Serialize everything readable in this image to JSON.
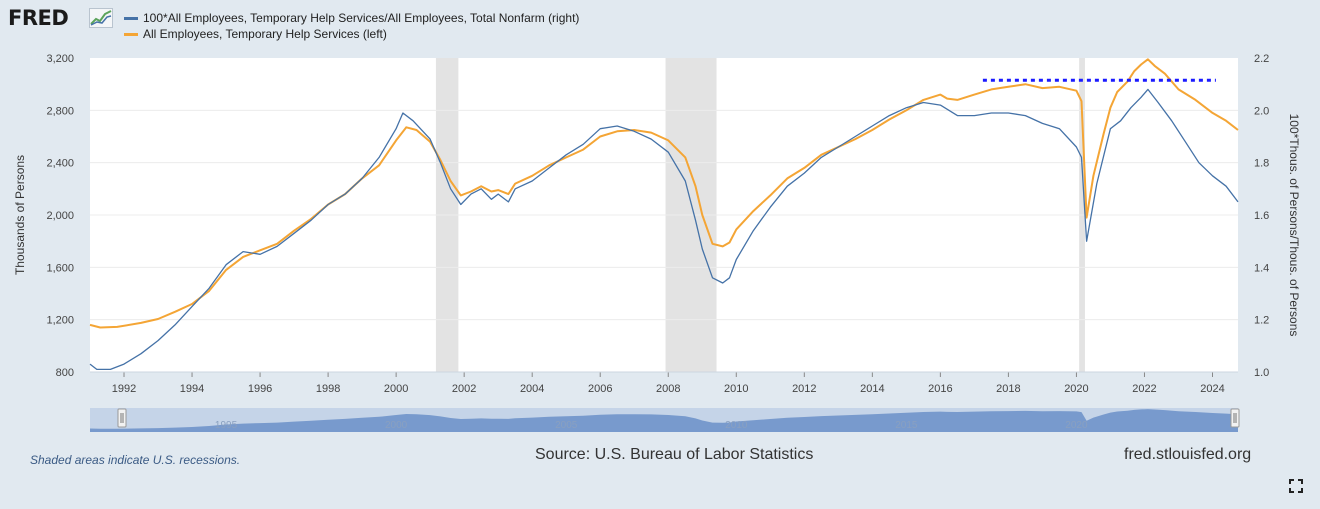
{
  "header": {
    "logo_text": "FRED",
    "logo_icon": "line-chart-icon"
  },
  "legend": {
    "items": [
      {
        "label": "100*All Employees, Temporary Help Services/All Employees, Total Nonfarm (right)",
        "color": "#4572a7"
      },
      {
        "label": "All Employees, Temporary Help Services (left)",
        "color": "#f4a535"
      }
    ]
  },
  "footer": {
    "recession_note": "Shaded areas indicate U.S. recessions.",
    "source": "Source: U.S. Bureau of Labor Statistics",
    "url": "fred.stlouisfed.org",
    "expand_icon": "fullscreen-icon"
  },
  "chart_data": {
    "type": "line",
    "xlim": [
      1991.0,
      2024.75
    ],
    "x_ticks": [
      "1992",
      "1994",
      "1996",
      "1998",
      "2000",
      "2002",
      "2004",
      "2006",
      "2008",
      "2010",
      "2012",
      "2014",
      "2016",
      "2018",
      "2020",
      "2022",
      "2024"
    ],
    "y_left": {
      "label": "Thousands of Persons",
      "ylim": [
        800,
        3200
      ],
      "ticks": [
        "800",
        "1,200",
        "1,600",
        "2,000",
        "2,400",
        "2,800",
        "3,200"
      ]
    },
    "y_right": {
      "label": "100*Thous. of Persons/Thous. of Persons",
      "ylim": [
        1.0,
        2.2
      ],
      "ticks": [
        "1.0",
        "1.2",
        "1.4",
        "1.6",
        "1.8",
        "2.0",
        "2.2"
      ]
    },
    "recessions": [
      [
        2001.17,
        2001.83
      ],
      [
        2007.92,
        2009.42
      ],
      [
        2020.08,
        2020.25
      ]
    ],
    "reference_line": {
      "x": [
        2017.25,
        2024.1
      ],
      "y_left": 3030,
      "color": "#1a1aff",
      "style": "dotted"
    },
    "navigator_ticks": [
      "1995",
      "2000",
      "2005",
      "2010",
      "2015",
      "2020"
    ],
    "series": [
      {
        "name": "All Employees, Temporary Help Services (left)",
        "axis": "left",
        "color": "#f4a535",
        "points": [
          [
            1991.0,
            1160
          ],
          [
            1991.3,
            1140
          ],
          [
            1991.8,
            1145
          ],
          [
            1992.5,
            1175
          ],
          [
            1993.0,
            1205
          ],
          [
            1993.5,
            1260
          ],
          [
            1994.0,
            1320
          ],
          [
            1994.5,
            1420
          ],
          [
            1995.0,
            1580
          ],
          [
            1995.5,
            1680
          ],
          [
            1996.0,
            1730
          ],
          [
            1996.5,
            1780
          ],
          [
            1997.0,
            1880
          ],
          [
            1997.5,
            1970
          ],
          [
            1998.0,
            2080
          ],
          [
            1998.5,
            2160
          ],
          [
            1999.0,
            2280
          ],
          [
            1999.5,
            2380
          ],
          [
            2000.0,
            2570
          ],
          [
            2000.3,
            2670
          ],
          [
            2000.6,
            2650
          ],
          [
            2001.0,
            2560
          ],
          [
            2001.3,
            2420
          ],
          [
            2001.6,
            2260
          ],
          [
            2001.9,
            2150
          ],
          [
            2002.2,
            2180
          ],
          [
            2002.5,
            2220
          ],
          [
            2002.8,
            2180
          ],
          [
            2003.0,
            2190
          ],
          [
            2003.3,
            2160
          ],
          [
            2003.5,
            2240
          ],
          [
            2004.0,
            2300
          ],
          [
            2004.5,
            2380
          ],
          [
            2005.0,
            2440
          ],
          [
            2005.5,
            2500
          ],
          [
            2006.0,
            2600
          ],
          [
            2006.5,
            2640
          ],
          [
            2007.0,
            2650
          ],
          [
            2007.5,
            2630
          ],
          [
            2008.0,
            2570
          ],
          [
            2008.5,
            2440
          ],
          [
            2008.8,
            2220
          ],
          [
            2009.0,
            2000
          ],
          [
            2009.3,
            1780
          ],
          [
            2009.6,
            1760
          ],
          [
            2009.8,
            1790
          ],
          [
            2010.0,
            1890
          ],
          [
            2010.5,
            2030
          ],
          [
            2011.0,
            2150
          ],
          [
            2011.5,
            2280
          ],
          [
            2012.0,
            2360
          ],
          [
            2012.5,
            2460
          ],
          [
            2013.0,
            2520
          ],
          [
            2013.5,
            2580
          ],
          [
            2014.0,
            2650
          ],
          [
            2014.5,
            2730
          ],
          [
            2015.0,
            2800
          ],
          [
            2015.5,
            2880
          ],
          [
            2016.0,
            2920
          ],
          [
            2016.2,
            2890
          ],
          [
            2016.5,
            2880
          ],
          [
            2017.0,
            2920
          ],
          [
            2017.5,
            2960
          ],
          [
            2018.0,
            2980
          ],
          [
            2018.5,
            3000
          ],
          [
            2019.0,
            2970
          ],
          [
            2019.5,
            2980
          ],
          [
            2020.0,
            2950
          ],
          [
            2020.15,
            2870
          ],
          [
            2020.3,
            1980
          ],
          [
            2020.5,
            2300
          ],
          [
            2020.8,
            2620
          ],
          [
            2021.0,
            2820
          ],
          [
            2021.2,
            2940
          ],
          [
            2021.5,
            3020
          ],
          [
            2021.7,
            3100
          ],
          [
            2021.9,
            3150
          ],
          [
            2022.1,
            3190
          ],
          [
            2022.3,
            3140
          ],
          [
            2022.6,
            3080
          ],
          [
            2023.0,
            2960
          ],
          [
            2023.5,
            2880
          ],
          [
            2024.0,
            2780
          ],
          [
            2024.4,
            2720
          ],
          [
            2024.75,
            2650
          ]
        ]
      },
      {
        "name": "100*All Employees, Temporary Help Services/All Employees, Total Nonfarm (right)",
        "axis": "right",
        "color": "#4572a7",
        "points": [
          [
            1991.0,
            1.03
          ],
          [
            1991.2,
            1.01
          ],
          [
            1991.6,
            1.01
          ],
          [
            1992.0,
            1.03
          ],
          [
            1992.5,
            1.07
          ],
          [
            1993.0,
            1.12
          ],
          [
            1993.5,
            1.18
          ],
          [
            1994.0,
            1.25
          ],
          [
            1994.5,
            1.32
          ],
          [
            1995.0,
            1.41
          ],
          [
            1995.5,
            1.46
          ],
          [
            1996.0,
            1.45
          ],
          [
            1996.5,
            1.48
          ],
          [
            1997.0,
            1.53
          ],
          [
            1997.5,
            1.58
          ],
          [
            1998.0,
            1.64
          ],
          [
            1998.5,
            1.68
          ],
          [
            1999.0,
            1.74
          ],
          [
            1999.5,
            1.82
          ],
          [
            2000.0,
            1.93
          ],
          [
            2000.2,
            1.99
          ],
          [
            2000.5,
            1.96
          ],
          [
            2001.0,
            1.89
          ],
          [
            2001.3,
            1.8
          ],
          [
            2001.6,
            1.7
          ],
          [
            2001.9,
            1.64
          ],
          [
            2002.2,
            1.68
          ],
          [
            2002.5,
            1.7
          ],
          [
            2002.8,
            1.66
          ],
          [
            2003.0,
            1.68
          ],
          [
            2003.3,
            1.65
          ],
          [
            2003.5,
            1.7
          ],
          [
            2004.0,
            1.73
          ],
          [
            2004.5,
            1.78
          ],
          [
            2005.0,
            1.83
          ],
          [
            2005.5,
            1.87
          ],
          [
            2006.0,
            1.93
          ],
          [
            2006.5,
            1.94
          ],
          [
            2007.0,
            1.92
          ],
          [
            2007.5,
            1.89
          ],
          [
            2008.0,
            1.84
          ],
          [
            2008.5,
            1.73
          ],
          [
            2008.8,
            1.58
          ],
          [
            2009.0,
            1.47
          ],
          [
            2009.3,
            1.36
          ],
          [
            2009.6,
            1.34
          ],
          [
            2009.8,
            1.36
          ],
          [
            2010.0,
            1.43
          ],
          [
            2010.5,
            1.54
          ],
          [
            2011.0,
            1.63
          ],
          [
            2011.5,
            1.71
          ],
          [
            2012.0,
            1.76
          ],
          [
            2012.5,
            1.82
          ],
          [
            2013.0,
            1.86
          ],
          [
            2013.5,
            1.9
          ],
          [
            2014.0,
            1.94
          ],
          [
            2014.5,
            1.98
          ],
          [
            2015.0,
            2.01
          ],
          [
            2015.5,
            2.03
          ],
          [
            2016.0,
            2.02
          ],
          [
            2016.5,
            1.98
          ],
          [
            2017.0,
            1.98
          ],
          [
            2017.5,
            1.99
          ],
          [
            2018.0,
            1.99
          ],
          [
            2018.5,
            1.98
          ],
          [
            2019.0,
            1.95
          ],
          [
            2019.5,
            1.93
          ],
          [
            2020.0,
            1.86
          ],
          [
            2020.15,
            1.82
          ],
          [
            2020.3,
            1.5
          ],
          [
            2020.6,
            1.72
          ],
          [
            2021.0,
            1.93
          ],
          [
            2021.3,
            1.96
          ],
          [
            2021.6,
            2.01
          ],
          [
            2021.9,
            2.05
          ],
          [
            2022.1,
            2.08
          ],
          [
            2022.4,
            2.03
          ],
          [
            2022.8,
            1.96
          ],
          [
            2023.2,
            1.88
          ],
          [
            2023.6,
            1.8
          ],
          [
            2024.0,
            1.75
          ],
          [
            2024.4,
            1.71
          ],
          [
            2024.75,
            1.65
          ]
        ]
      }
    ]
  }
}
